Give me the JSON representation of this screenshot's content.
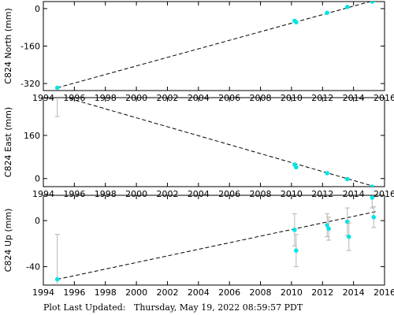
{
  "chart_data": [
    {
      "type": "scatter",
      "ylabel": "C824 North (mm)",
      "xlim": [
        1994,
        2016
      ],
      "ylim": [
        -350,
        30
      ],
      "xticks": [
        1994,
        1996,
        1998,
        2000,
        2002,
        2004,
        2006,
        2008,
        2010,
        2012,
        2014,
        2016
      ],
      "yticks": [
        0,
        -160,
        -320
      ],
      "points": [
        {
          "x": 1994.9,
          "y": -338,
          "err": 0
        },
        {
          "x": 2010.2,
          "y": -52,
          "err": 0
        },
        {
          "x": 2010.3,
          "y": -58,
          "err": 0
        },
        {
          "x": 2012.3,
          "y": -18,
          "err": 0
        },
        {
          "x": 2013.6,
          "y": 7,
          "err": 0
        },
        {
          "x": 2015.2,
          "y": 30,
          "err": 0
        },
        {
          "x": 2015.3,
          "y": 34,
          "err": 0
        }
      ],
      "trend": {
        "x": [
          1994.9,
          2015.5
        ],
        "y": [
          -338,
          38
        ]
      },
      "marker_color": "#00e5e5",
      "grid": false
    },
    {
      "type": "scatter",
      "ylabel": "C824 East (mm)",
      "xlim": [
        1994,
        2016
      ],
      "ylim": [
        -30,
        300
      ],
      "xticks": [
        1994,
        1996,
        1998,
        2000,
        2002,
        2004,
        2006,
        2008,
        2010,
        2012,
        2014,
        2016
      ],
      "yticks": [
        160,
        0
      ],
      "points": [
        {
          "x": 1994.9,
          "y": 310,
          "err": 80
        },
        {
          "x": 2010.2,
          "y": 52,
          "err": 0
        },
        {
          "x": 2010.3,
          "y": 42,
          "err": 0
        },
        {
          "x": 2012.3,
          "y": 20,
          "err": 0
        },
        {
          "x": 2013.6,
          "y": -2,
          "err": 0
        },
        {
          "x": 2015.2,
          "y": -30,
          "err": 0
        }
      ],
      "trend": {
        "x": [
          1994.9,
          2015.5
        ],
        "y": [
          310,
          -32
        ]
      },
      "marker_color": "#00e5e5",
      "grid": false
    },
    {
      "type": "scatter",
      "ylabel": "C824 Up (mm)",
      "xlim": [
        1994,
        2016
      ],
      "ylim": [
        -56,
        22
      ],
      "xticks": [
        1994,
        1996,
        1998,
        2000,
        2002,
        2004,
        2006,
        2008,
        2010,
        2012,
        2014,
        2016
      ],
      "yticks": [
        0,
        -40
      ],
      "points": [
        {
          "x": 1994.9,
          "y": -51,
          "err": 39
        },
        {
          "x": 2010.2,
          "y": -8,
          "err": 14
        },
        {
          "x": 2010.3,
          "y": -26,
          "err": 14
        },
        {
          "x": 2012.3,
          "y": -4,
          "err": 10
        },
        {
          "x": 2012.4,
          "y": -7,
          "err": 10
        },
        {
          "x": 2013.6,
          "y": -1,
          "err": 12
        },
        {
          "x": 2013.7,
          "y": -14,
          "err": 12
        },
        {
          "x": 2015.2,
          "y": 20,
          "err": 9
        },
        {
          "x": 2015.3,
          "y": 3,
          "err": 9
        }
      ],
      "trend": {
        "x": [
          1994.9,
          2015.5
        ],
        "y": [
          -51,
          8
        ]
      },
      "marker_color": "#00e5e5",
      "grid": false
    }
  ],
  "footer": {
    "label": "Plot Last Updated:",
    "timestamp": "Thursday, May 19, 2022 08:59:57 PDT"
  }
}
